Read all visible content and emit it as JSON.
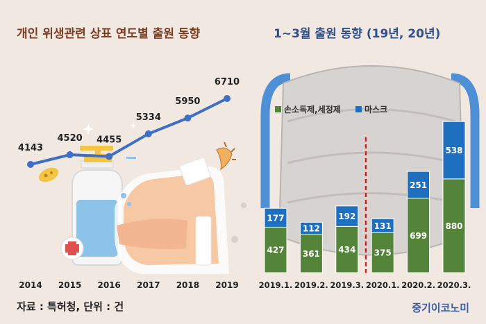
{
  "left_title": "개인 위생관련 상표 연도별 출원 동향",
  "right_title": "1~3월 출원 동향 (19년, 20년)",
  "source": "자료 : 특허청, 단위 : 건",
  "brand": "중기이코노미",
  "colors": {
    "background": "#f2e8e2",
    "left_title": "#7a3d22",
    "right_title": "#2e4f8a",
    "line": "#3f6fc4",
    "sanitizer": "#54833a",
    "mask": "#1f6fc0",
    "divider": "#d92020"
  },
  "chart_data": [
    {
      "type": "line",
      "x": [
        "2014",
        "2015",
        "2016",
        "2017",
        "2018",
        "2019"
      ],
      "values": [
        4143,
        4520,
        4455,
        5334,
        5950,
        6710
      ],
      "data_labels": [
        "4143",
        "4520",
        "4455",
        "5334",
        "5950",
        "6710"
      ],
      "ylim": [
        3800,
        7000
      ]
    },
    {
      "type": "bar",
      "stacked": true,
      "categories": [
        "2019.1.",
        "2019.2.",
        "2019.3.",
        "2020.1.",
        "2020.2.",
        "2020.3."
      ],
      "series": [
        {
          "name": "손소독제,세정제",
          "values": [
            427,
            361,
            434,
            375,
            699,
            880
          ]
        },
        {
          "name": "마스크",
          "values": [
            177,
            112,
            192,
            131,
            251,
            538
          ]
        }
      ],
      "legend": "top-left",
      "ylim": [
        0,
        1418
      ]
    }
  ]
}
